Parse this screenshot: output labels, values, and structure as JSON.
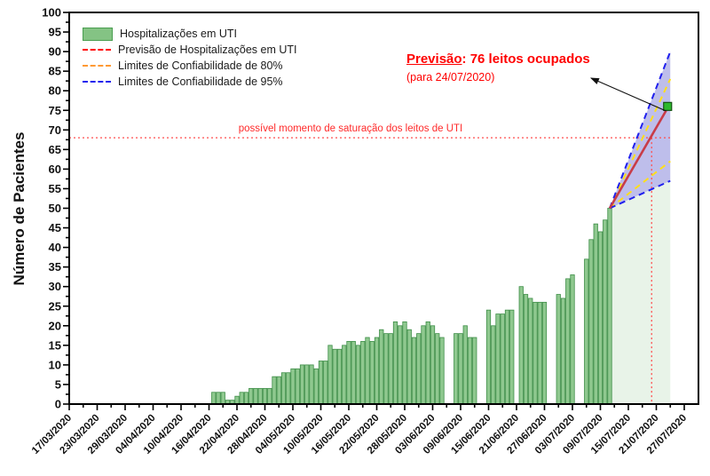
{
  "figure": {
    "ylabel": "Número de Pacientes",
    "saturation_label": "possível momento de saturação dos leitos de UTI",
    "annotation": {
      "lead": "Previsão",
      "rest": ": 76 leitos ocupados",
      "sub": "(para 24/07/2020)",
      "color": "#ff0000"
    },
    "legend": {
      "items": [
        {
          "label": "Hospitalizações em UTI",
          "swatch": "bar",
          "color": "#84c384",
          "border": "#4a9e50"
        },
        {
          "label": "Previsão de Hospitalizações em UTI",
          "swatch": "dashed-line",
          "color": "#ff0000"
        },
        {
          "label": "Limites  de Confiabilidade de 80%",
          "swatch": "dashed-line",
          "color": "#ff9933"
        },
        {
          "label": "Limites  de Confiabilidade de 95%",
          "swatch": "dashed-line",
          "color": "#2424ee"
        }
      ]
    }
  },
  "chart_data": {
    "type": "bar",
    "title": "",
    "xlabel": "",
    "ylabel": "Número de Pacientes",
    "ylim": [
      0,
      100
    ],
    "y_tick_step": 5,
    "y_minor_step": 2.5,
    "x_axis_start_date": "17/03/2020",
    "x_tick_interval_days": 6,
    "x_minor_interval_days": 3,
    "x_axis_span_days": 132,
    "x_tick_labels": [
      "17/03/2020",
      "23/03/2020",
      "29/03/2020",
      "04/04/2020",
      "10/04/2020",
      "16/04/2020",
      "22/04/2020",
      "28/04/2020",
      "04/05/2020",
      "10/05/2020",
      "16/05/2020",
      "22/05/2020",
      "28/05/2020",
      "03/06/2020",
      "09/06/2020",
      "15/06/2020",
      "21/06/2020",
      "27/06/2020",
      "03/07/2020",
      "09/07/2020",
      "15/07/2020",
      "21/07/2020",
      "27/07/2020"
    ],
    "bars": {
      "name": "Hospitalizações em UTI",
      "start_date": "17/04/2020",
      "values": [
        3,
        3,
        3,
        1,
        1,
        2,
        3,
        3,
        4,
        4,
        4,
        4,
        4,
        7,
        7,
        8,
        8,
        9,
        9,
        10,
        10,
        10,
        9,
        11,
        11,
        15,
        14,
        14,
        15,
        16,
        16,
        15,
        16,
        17,
        16,
        17,
        19,
        18,
        18,
        21,
        20,
        21,
        19,
        17,
        18,
        20,
        21,
        20,
        18,
        17,
        null,
        null,
        18,
        18,
        20,
        17,
        17,
        null,
        null,
        24,
        20,
        23,
        23,
        24,
        24,
        null,
        30,
        28,
        27,
        26,
        26,
        26,
        null,
        null,
        28,
        27,
        32,
        33,
        null,
        null,
        37,
        42,
        46,
        44,
        47,
        50
      ]
    },
    "saturation_level": 68,
    "forecast": {
      "start_date": "11/07/2020",
      "start_value": 50,
      "end_date": "24/07/2020",
      "prediction": 76,
      "ci80": [
        62,
        83
      ],
      "ci95": [
        57,
        90
      ]
    },
    "colors": {
      "bar_fill": "#86c386",
      "bar_border": "#3e8e47",
      "forecast_bg": "#e8f3e8",
      "ci95_fill": "rgba(110,110,210,0.45)",
      "ci95_line": "#2020ee",
      "ci80_line": "#ffdf1a",
      "prediction_line": "#c83c48",
      "marker_fill": "#2eb82e",
      "marker_border": "#145214",
      "saturation_line": "#ff4d4d",
      "axis": "#000000"
    },
    "legend_position": "top-left",
    "grid": false
  }
}
